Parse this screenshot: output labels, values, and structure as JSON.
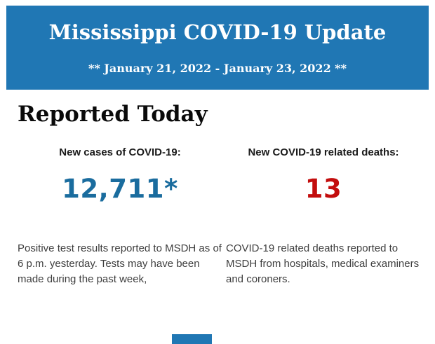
{
  "banner": {
    "title": "Mississippi COVID-19 Update",
    "date_range": "** January 21, 2022 - January 23, 2022 **",
    "background_color": "#2077b4",
    "text_color": "#ffffff"
  },
  "report": {
    "heading": "Reported Today",
    "cases": {
      "label": "New cases of COVID-19:",
      "value": "12,711*",
      "value_color": "#1a6c9e",
      "description": "Positive test results reported to MSDH as of 6 p.m. yesterday. Tests may have been made during the past week,"
    },
    "deaths": {
      "label": "New COVID-19 related deaths:",
      "value": "13",
      "value_color": "#c30d0d",
      "description": "COVID-19 related deaths reported to MSDH from hospitals, medical examiners and coroners."
    }
  },
  "footer": {
    "partial_bar_color": "#2077b4"
  }
}
